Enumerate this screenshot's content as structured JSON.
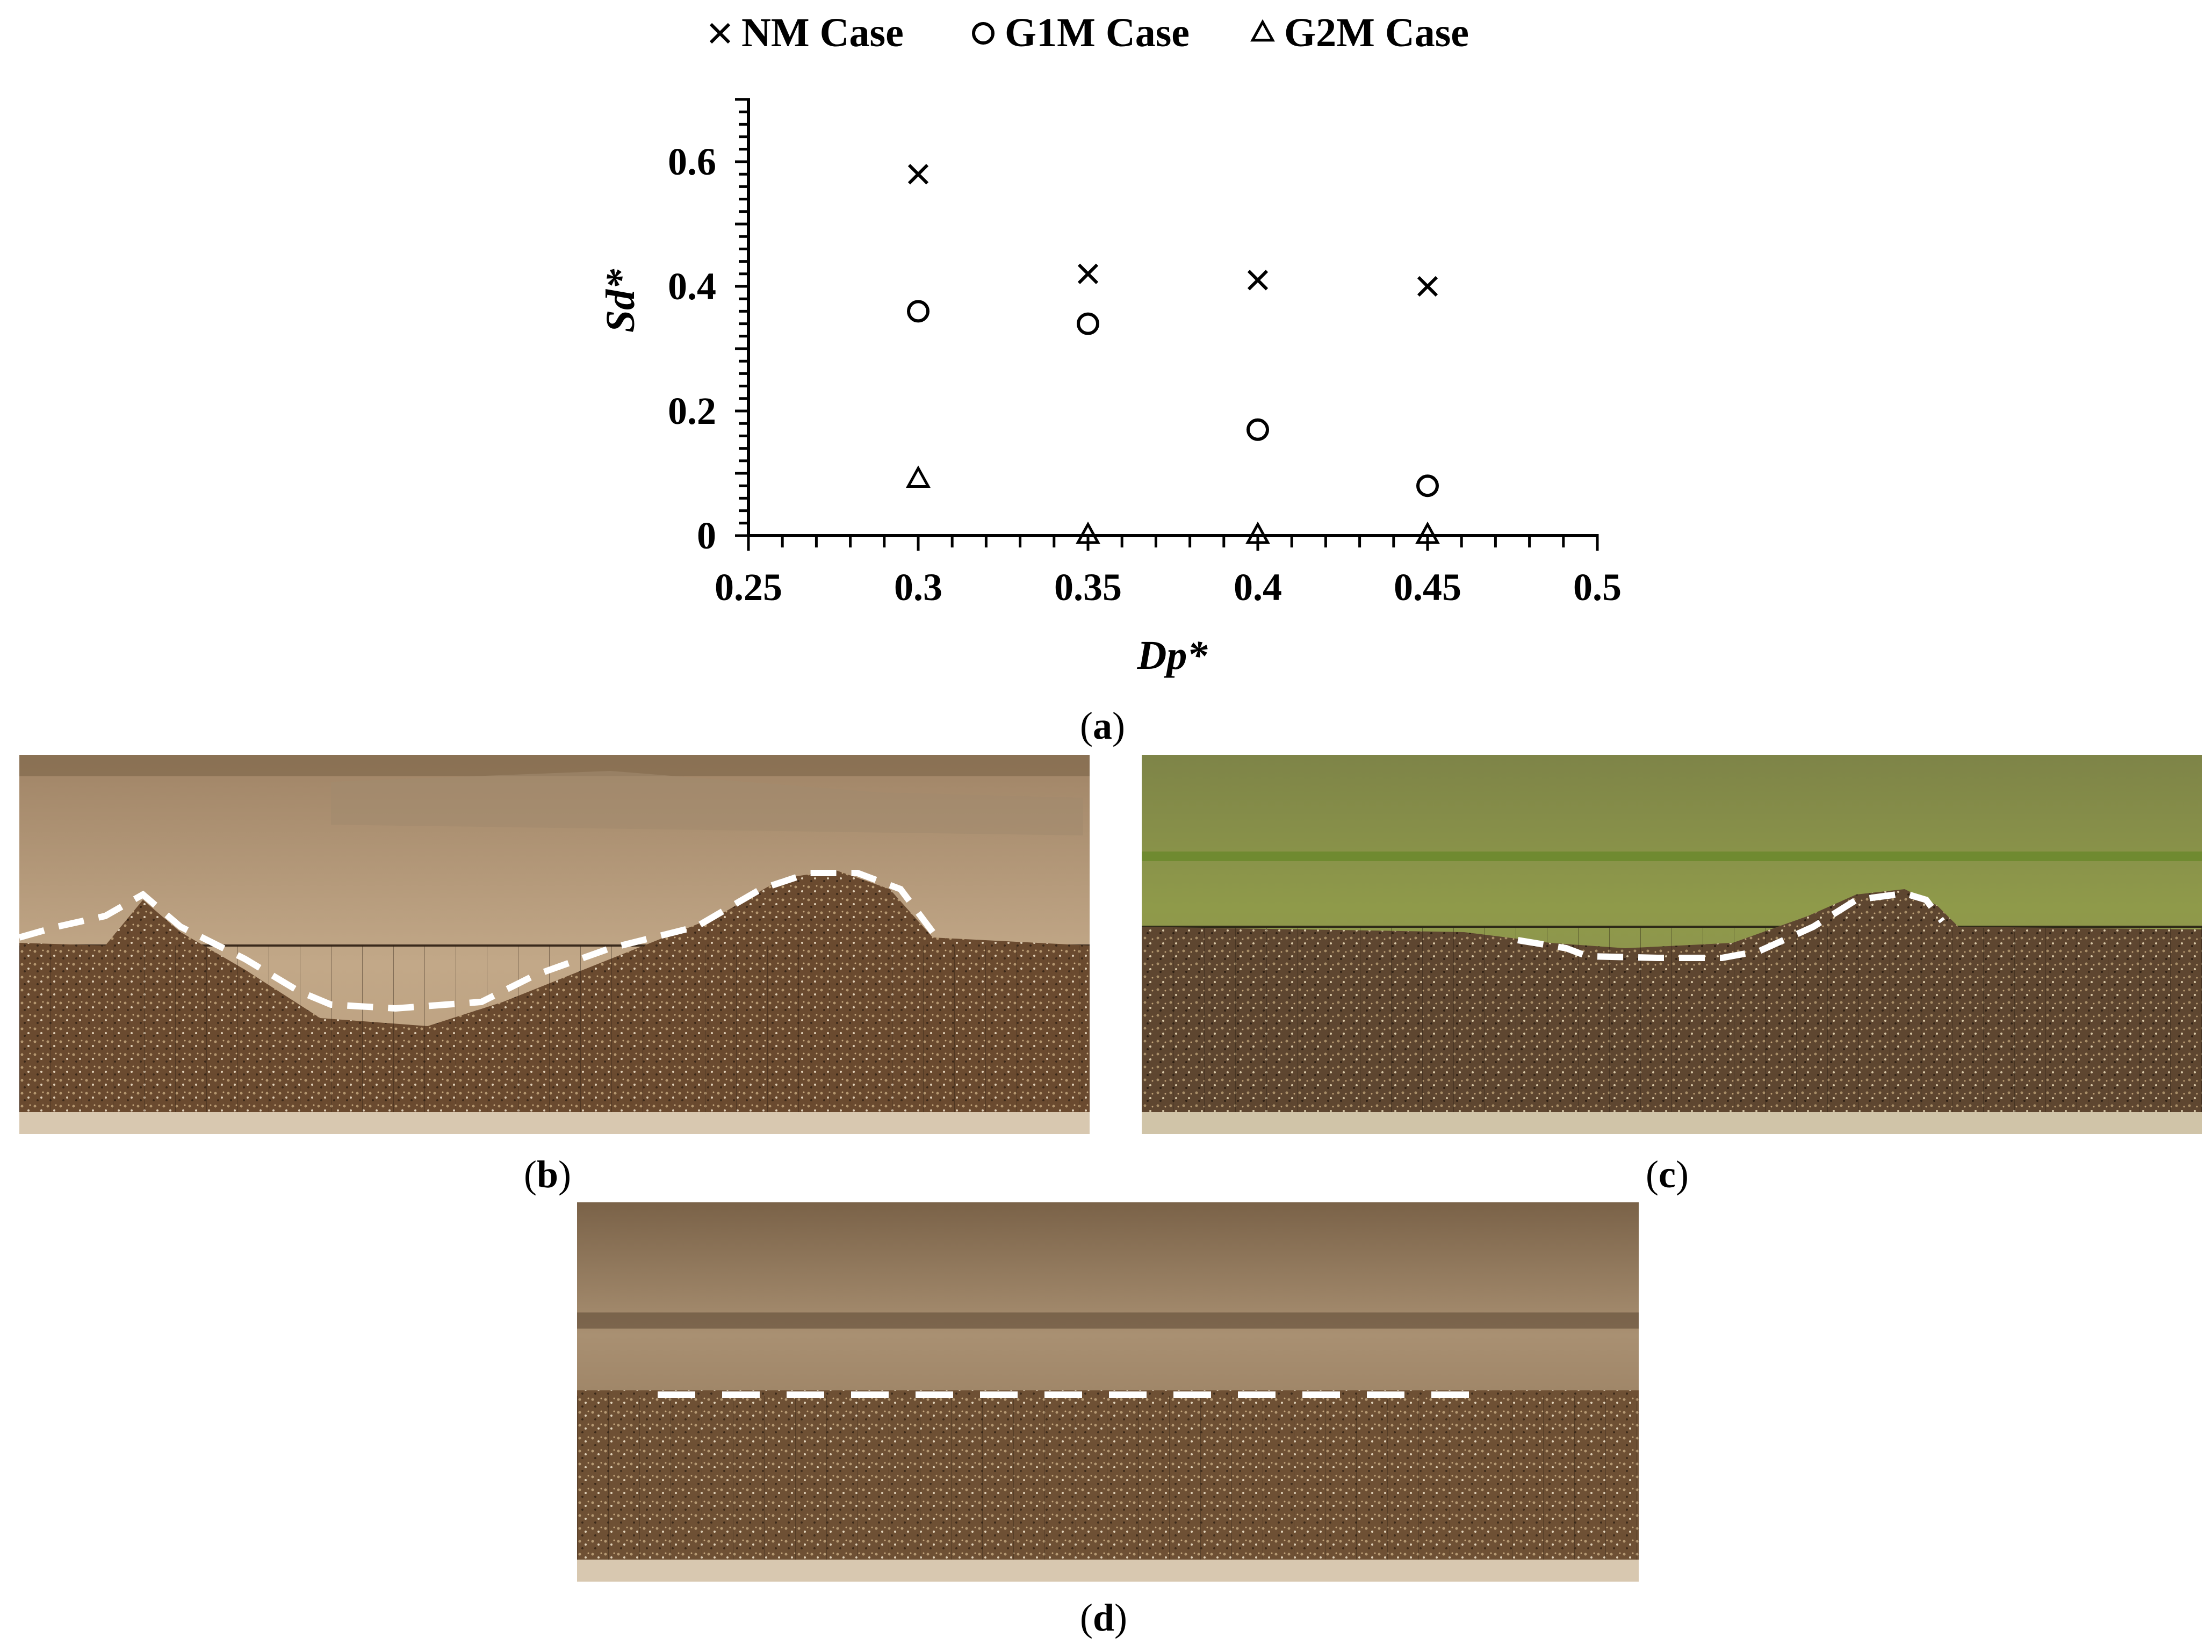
{
  "chart_data": {
    "type": "scatter",
    "title": "",
    "xlabel": "Dp*",
    "ylabel": "Sd*",
    "xlim": [
      0.25,
      0.5
    ],
    "ylim": [
      0,
      0.7
    ],
    "x_ticks": [
      "0.25",
      "0.3",
      "0.35",
      "0.4",
      "0.45",
      "0.5"
    ],
    "y_ticks": [
      "0",
      "0.2",
      "0.4",
      "0.6"
    ],
    "grid": false,
    "legend_position": "top",
    "series": [
      {
        "name": "NM Case",
        "marker": "cross",
        "x": [
          0.3,
          0.35,
          0.4,
          0.45
        ],
        "y": [
          0.58,
          0.42,
          0.41,
          0.4
        ]
      },
      {
        "name": "G1M Case",
        "marker": "circle",
        "x": [
          0.3,
          0.35,
          0.4,
          0.45
        ],
        "y": [
          0.36,
          0.34,
          0.17,
          0.08
        ]
      },
      {
        "name": "G2M Case",
        "marker": "triangle",
        "x": [
          0.3,
          0.35,
          0.4,
          0.45
        ],
        "y": [
          0.09,
          0.0,
          0.0,
          0.0
        ]
      }
    ]
  },
  "panels": {
    "a": {
      "open": "(",
      "letter": "a",
      "close": ")"
    },
    "b": {
      "open": "(",
      "letter": "b",
      "close": ")"
    },
    "c": {
      "open": "(",
      "letter": "c",
      "close": ")"
    },
    "d": {
      "open": "(",
      "letter": "d",
      "close": ")"
    }
  },
  "colors": {
    "marker": "#000000",
    "profile_line": "#ffffff",
    "sediment": "#6b4c30",
    "background_b": "#b59a78",
    "background_c": "#8c9153",
    "background_d": "#a88f70"
  }
}
